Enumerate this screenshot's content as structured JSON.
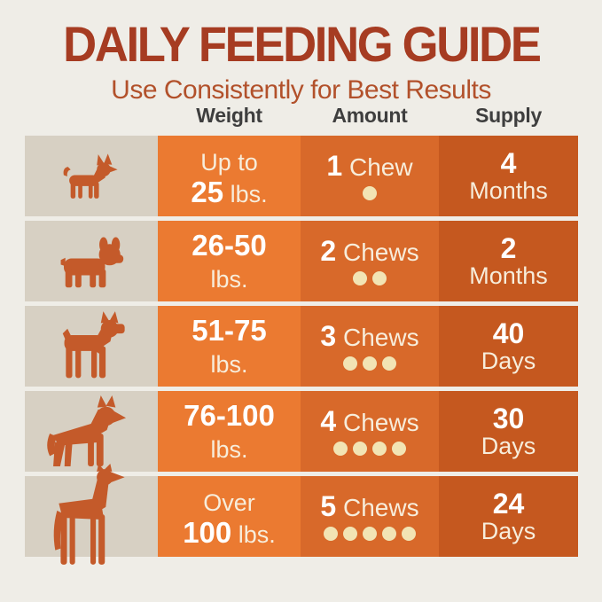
{
  "title": "DAILY FEEDING GUIDE",
  "subtitle": "Use Consistently for Best Results",
  "headers": {
    "weight": "Weight",
    "amount": "Amount",
    "supply": "Supply"
  },
  "colors": {
    "background": "#EFEDE7",
    "title": "#A63C22",
    "subtitle": "#B2512B",
    "header_text": "#3E3E3E",
    "dog_cell_bg": "#D7D0C3",
    "weight_col_bg": "#EB7A31",
    "amount_col_bg": "#D8692A",
    "supply_col_bg": "#C5581F",
    "dog_silhouette": "#C45A2A",
    "chew_dot": "#F2E4B4",
    "number_text": "#FFFFFF",
    "word_text": "#F7EDDB"
  },
  "dog_icons": [
    "chihuahua-icon",
    "french-bulldog-icon",
    "boxer-icon",
    "german-shepherd-icon",
    "great-dane-icon"
  ],
  "rows": [
    {
      "dog": "chihuahua",
      "weight": {
        "top_bold": "",
        "top_normal": "Up to",
        "bottom_bold": "25",
        "bottom_normal": " lbs."
      },
      "amount": {
        "count": "1",
        "label": "Chew",
        "dots": 1
      },
      "supply": {
        "value": "4",
        "unit": "Months"
      }
    },
    {
      "dog": "french-bulldog",
      "weight": {
        "top_bold": "26-50",
        "top_normal": "",
        "bottom_bold": "",
        "bottom_normal": "lbs."
      },
      "amount": {
        "count": "2",
        "label": "Chews",
        "dots": 2
      },
      "supply": {
        "value": "2",
        "unit": "Months"
      }
    },
    {
      "dog": "boxer",
      "weight": {
        "top_bold": "51-75",
        "top_normal": "",
        "bottom_bold": "",
        "bottom_normal": "lbs."
      },
      "amount": {
        "count": "3",
        "label": "Chews",
        "dots": 3
      },
      "supply": {
        "value": "40",
        "unit": "Days"
      }
    },
    {
      "dog": "german-shepherd",
      "weight": {
        "top_bold": "76-100",
        "top_normal": "",
        "bottom_bold": "",
        "bottom_normal": "lbs."
      },
      "amount": {
        "count": "4",
        "label": "Chews",
        "dots": 4
      },
      "supply": {
        "value": "30",
        "unit": "Days"
      }
    },
    {
      "dog": "great-dane",
      "weight": {
        "top_bold": "",
        "top_normal": "Over",
        "bottom_bold": "100",
        "bottom_normal": " lbs."
      },
      "amount": {
        "count": "5",
        "label": "Chews",
        "dots": 5
      },
      "supply": {
        "value": "24",
        "unit": "Days"
      }
    }
  ],
  "chart_data": {
    "type": "table",
    "title": "DAILY FEEDING GUIDE",
    "subtitle": "Use Consistently for Best Results",
    "columns": [
      "Weight",
      "Amount",
      "Supply"
    ],
    "rows": [
      [
        "Up to 25 lbs.",
        "1 Chew",
        "4 Months"
      ],
      [
        "26-50 lbs.",
        "2 Chews",
        "2 Months"
      ],
      [
        "51-75 lbs.",
        "3 Chews",
        "40 Days"
      ],
      [
        "76-100 lbs.",
        "4 Chews",
        "30 Days"
      ],
      [
        "Over 100 lbs.",
        "5 Chews",
        "24 Days"
      ]
    ],
    "legend_position": "none",
    "grid": false
  }
}
